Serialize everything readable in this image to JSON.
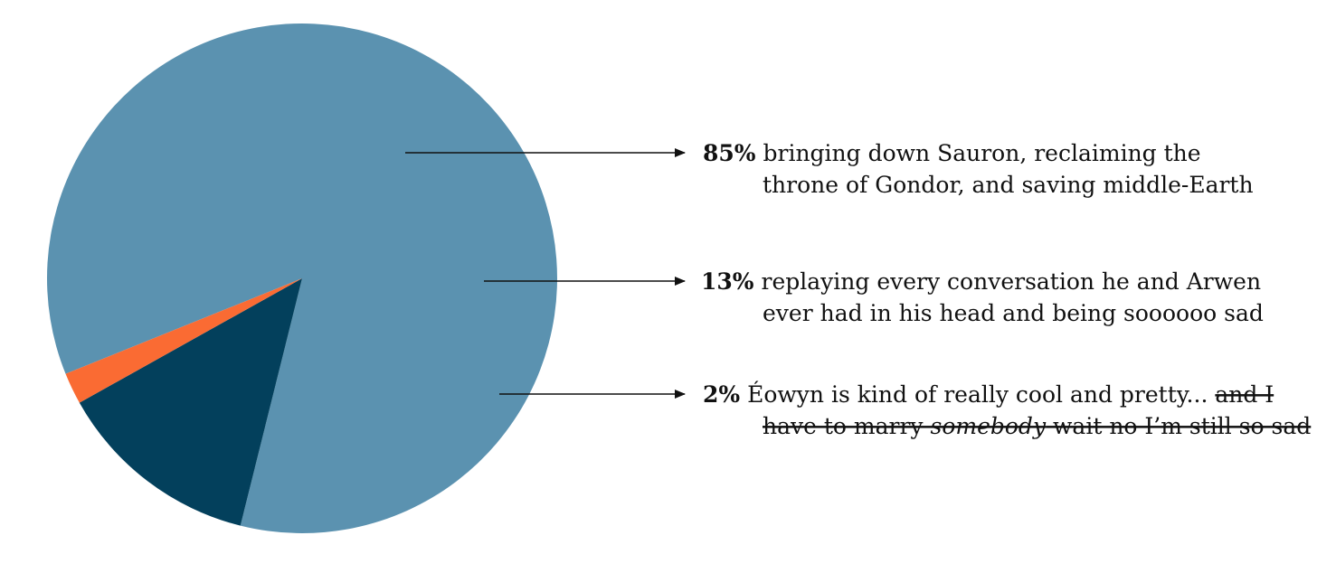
{
  "chart_data": {
    "type": "pie",
    "title": "",
    "colors": [
      "#5b92b0",
      "#03405c",
      "#fa6b33"
    ],
    "legend": "right",
    "slices": [
      {
        "value": 85,
        "percent_label": "85%",
        "color": "#5b92b0",
        "text_lines": [
          [
            {
              "text": " bringing down Sauron, reclaiming the"
            }
          ],
          [
            {
              "text": "throne of Gondor, and saving middle-Earth"
            }
          ]
        ]
      },
      {
        "value": 13,
        "percent_label": "13%",
        "color": "#03405c",
        "text_lines": [
          [
            {
              "text": " replaying every conversation he and Arwen"
            }
          ],
          [
            {
              "text": "ever had in his head and being soooooo sad"
            }
          ]
        ]
      },
      {
        "value": 2,
        "percent_label": "2%",
        "color": "#fa6b33",
        "text_lines": [
          [
            {
              "text": " Éowyn is kind of really cool and pretty... "
            },
            {
              "text": "and I",
              "style": "strike"
            }
          ],
          [
            {
              "text": "have to marry ",
              "style": "strike"
            },
            {
              "text": "somebody",
              "style": "strike-italic"
            },
            {
              "text": " wait no I’m still so sad",
              "style": "strike"
            }
          ]
        ]
      }
    ]
  }
}
